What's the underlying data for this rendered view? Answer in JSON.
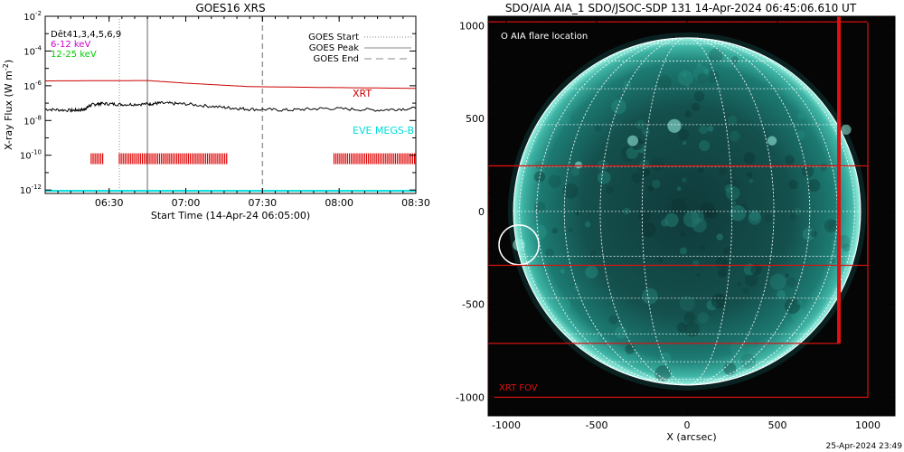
{
  "chart_data": [
    {
      "type": "line",
      "title": "GOES16 XRS",
      "xlabel": "Start Time (14-Apr-24 06:05:00)",
      "ylabel": "X-ray Flux (W m",
      "ylabel_exp": "-2",
      "ylabel_close": ")",
      "x_tick_labels": [
        "06:30",
        "07:00",
        "07:30",
        "08:00",
        "08:30"
      ],
      "x_tick_minutes": [
        25,
        55,
        85,
        115,
        145
      ],
      "xlim_minutes": [
        0,
        145
      ],
      "y_tick_labels": [
        {
          "base": "10",
          "exp": "-2"
        },
        {
          "base": "10",
          "exp": "-4"
        },
        {
          "base": "10",
          "exp": "-6"
        },
        {
          "base": "10",
          "exp": "-8"
        },
        {
          "base": "10",
          "exp": "-10"
        },
        {
          "base": "10",
          "exp": "-12"
        }
      ],
      "y_tick_logs": [
        -2,
        -4,
        -6,
        -8,
        -10,
        -12
      ],
      "ylim_log": [
        -12.2,
        -2
      ],
      "legend_left": [
        {
          "text": "Dēt41,3,4,5,6,9",
          "color": "#000000"
        },
        {
          "text": "6-12 keV",
          "color": "#cc00cc"
        },
        {
          "text": "12-25 keV",
          "color": "#00cc00"
        }
      ],
      "legend_right": [
        {
          "text": "GOES Start",
          "style": "dotted"
        },
        {
          "text": "GOES Peak",
          "style": "solid"
        },
        {
          "text": "GOES End",
          "style": "dashed"
        }
      ],
      "series": [
        {
          "name": "XRT",
          "color": "#cc0000",
          "x": [
            0,
            40,
            55,
            80,
            110,
            145
          ],
          "y_log": [
            -5.72,
            -5.7,
            -5.85,
            -6.05,
            -6.1,
            -6.15
          ]
        },
        {
          "name": "",
          "color": "#000000",
          "x": [
            0,
            10,
            15,
            18,
            22,
            30,
            40,
            45,
            55,
            70,
            80,
            95,
            110,
            130,
            145
          ],
          "y_log": [
            -7.35,
            -7.42,
            -7.38,
            -7.1,
            -7.02,
            -7.08,
            -7.05,
            -7.0,
            -7.05,
            -7.25,
            -7.35,
            -7.4,
            -7.3,
            -7.4,
            -7.3
          ]
        },
        {
          "name": "EVE MEGS-B",
          "color": "#00dddd",
          "x": [
            0,
            145
          ],
          "y_log": [
            -12.05,
            -12.05
          ]
        }
      ],
      "series_labels": [
        {
          "text": "XRT",
          "color": "#cc0000"
        },
        {
          "text": "EVE MEGS-B",
          "color": "#00dddd"
        }
      ],
      "goes_start_min": 29,
      "goes_peak_min": 40,
      "goes_end_min": 85,
      "coverage_log": -10.2,
      "coverage_spans": [
        [
          18,
          23
        ],
        [
          29,
          71
        ],
        [
          113,
          145
        ]
      ]
    },
    {
      "type": "image",
      "title": "SDO/AIA AIA_1 SDO/JSOC-SDP 131 14-Apr-2024 06:45:06.610 UT",
      "xlabel": "X (arcsec)",
      "x_tick_labels": [
        "-1000",
        "-500",
        "0",
        "500",
        "1000"
      ],
      "x_ticks": [
        -1000,
        -500,
        0,
        500,
        1000
      ],
      "y_tick_labels": [
        "1000",
        "500",
        "0",
        "-500",
        "-1000"
      ],
      "y_ticks": [
        1000,
        500,
        0,
        -500,
        -1000
      ],
      "xlim": [
        -1100,
        1150
      ],
      "ylim": [
        -1100,
        1050
      ],
      "solar_radius": 960,
      "legend_text": "O AIA flare location",
      "fov_label": "XRT FOV",
      "flare": {
        "x": -930,
        "y": -180,
        "r": 110
      },
      "fov_outer": [
        -1100,
        -1000,
        1000,
        1020
      ],
      "fov_band": [
        -1100,
        1000,
        -290,
        245
      ],
      "fov_lower": [
        -1100,
        840,
        -710,
        245
      ],
      "fov_vertical_x": 840
    }
  ],
  "footer_date": "25-Apr-2024 23:49"
}
